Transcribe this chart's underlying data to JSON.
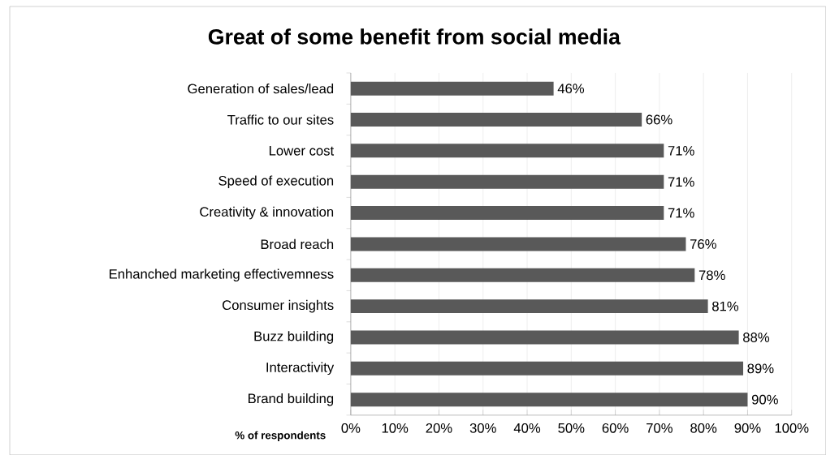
{
  "chart_data": {
    "type": "bar",
    "orientation": "horizontal",
    "title": "Great of some benefit from social media",
    "xlabel": "% of respondents",
    "categories": [
      "Generation of sales/lead",
      "Traffic to our sites",
      "Lower cost",
      "Speed of execution",
      "Creativity & innovation",
      "Broad reach",
      "Enhanched marketing effectivemness",
      "Consumer insights",
      "Buzz building",
      "Interactivity",
      "Brand building"
    ],
    "values": [
      46,
      66,
      71,
      71,
      71,
      76,
      78,
      81,
      88,
      89,
      90
    ],
    "value_labels": [
      "46%",
      "66%",
      "71%",
      "71%",
      "71%",
      "76%",
      "78%",
      "81%",
      "88%",
      "89%",
      "90%"
    ],
    "color": "#595959",
    "xlim": [
      0,
      100
    ],
    "xticks": [
      {
        "value": 0,
        "label": "0%"
      },
      {
        "value": 10,
        "label": "10%"
      },
      {
        "value": 20,
        "label": "20%"
      },
      {
        "value": 30,
        "label": "30%"
      },
      {
        "value": 40,
        "label": "40%"
      },
      {
        "value": 50,
        "label": "50%"
      },
      {
        "value": 60,
        "label": "60%"
      },
      {
        "value": 70,
        "label": "70%"
      },
      {
        "value": 80,
        "label": "80%"
      },
      {
        "value": 90,
        "label": "90%"
      },
      {
        "value": 100,
        "label": "100%"
      }
    ],
    "grid": "x"
  }
}
